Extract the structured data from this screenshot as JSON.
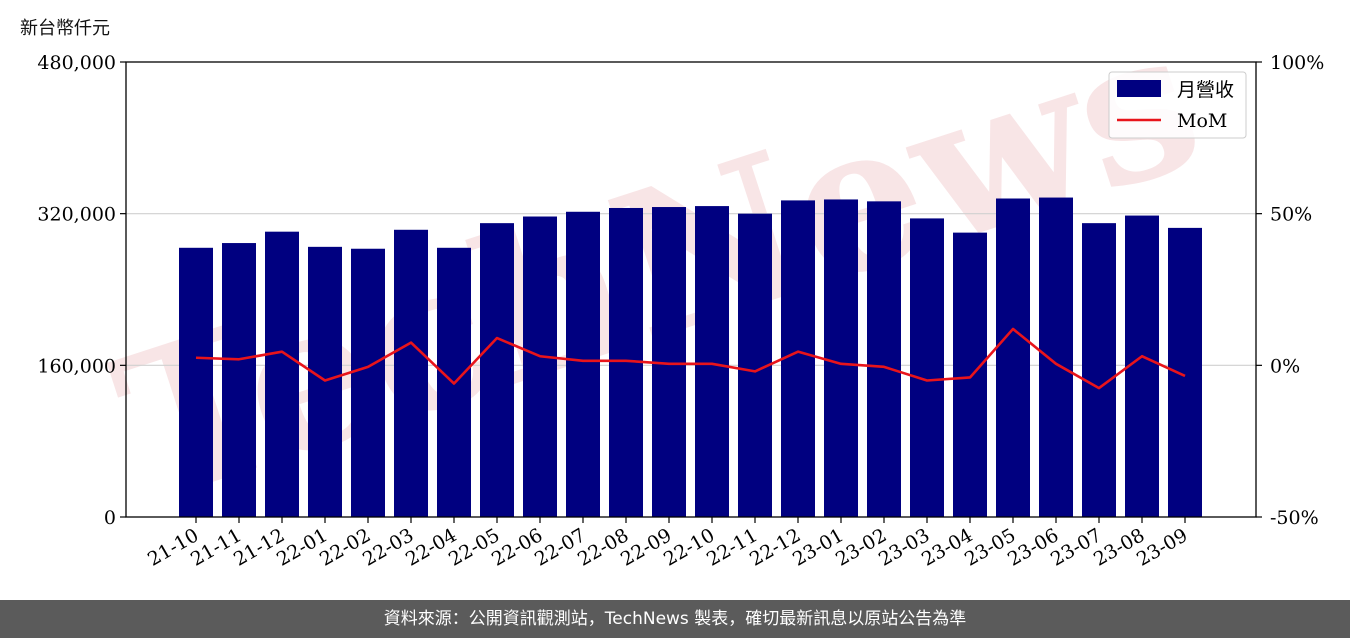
{
  "unit_label": "新台幣仟元",
  "footer": "資料來源：公開資訊觀測站，TechNews 製表，確切最新訊息以原站公告為準",
  "watermark": "TechNews",
  "colors": {
    "bar": "#000080",
    "line": "#e8141b",
    "grid": "#d0d0d0",
    "footer_bg": "#5b5b5b"
  },
  "chart_data": {
    "type": "bar",
    "categories": [
      "21-10",
      "21-11",
      "21-12",
      "22-01",
      "22-02",
      "22-03",
      "22-04",
      "22-05",
      "22-06",
      "22-07",
      "22-08",
      "22-09",
      "22-10",
      "22-11",
      "22-12",
      "23-01",
      "23-02",
      "23-03",
      "23-04",
      "23-05",
      "23-06",
      "23-07",
      "23-08",
      "23-09"
    ],
    "series": [
      {
        "name": "月營收",
        "axis": "left",
        "type": "bar",
        "values": [
          284000,
          289000,
          301000,
          285000,
          283000,
          303000,
          284000,
          310000,
          317000,
          322000,
          326000,
          327000,
          328000,
          320000,
          334000,
          335000,
          333000,
          315000,
          300000,
          336000,
          337000,
          310000,
          318000,
          305000
        ]
      },
      {
        "name": "MoM",
        "axis": "right",
        "type": "line",
        "values": [
          2.5,
          2.0,
          4.5,
          -5.0,
          -0.5,
          7.5,
          -6.0,
          9.0,
          3.0,
          1.5,
          1.5,
          0.5,
          0.5,
          -2.0,
          4.5,
          0.5,
          -0.5,
          -5.0,
          -4.0,
          12.0,
          0.5,
          -7.5,
          3.0,
          -3.5
        ]
      }
    ],
    "y_left": {
      "lim": [
        0,
        480000
      ],
      "ticks": [
        "0",
        "160,000",
        "320,000",
        "480,000"
      ],
      "tick_values": [
        0,
        160000,
        320000,
        480000
      ]
    },
    "y_right": {
      "lim": [
        -50,
        100
      ],
      "ticks": [
        "-50%",
        "0%",
        "50%",
        "100%"
      ],
      "tick_values": [
        -50,
        0,
        50,
        100
      ]
    },
    "grid": "horizontal",
    "legend": "top-right"
  }
}
